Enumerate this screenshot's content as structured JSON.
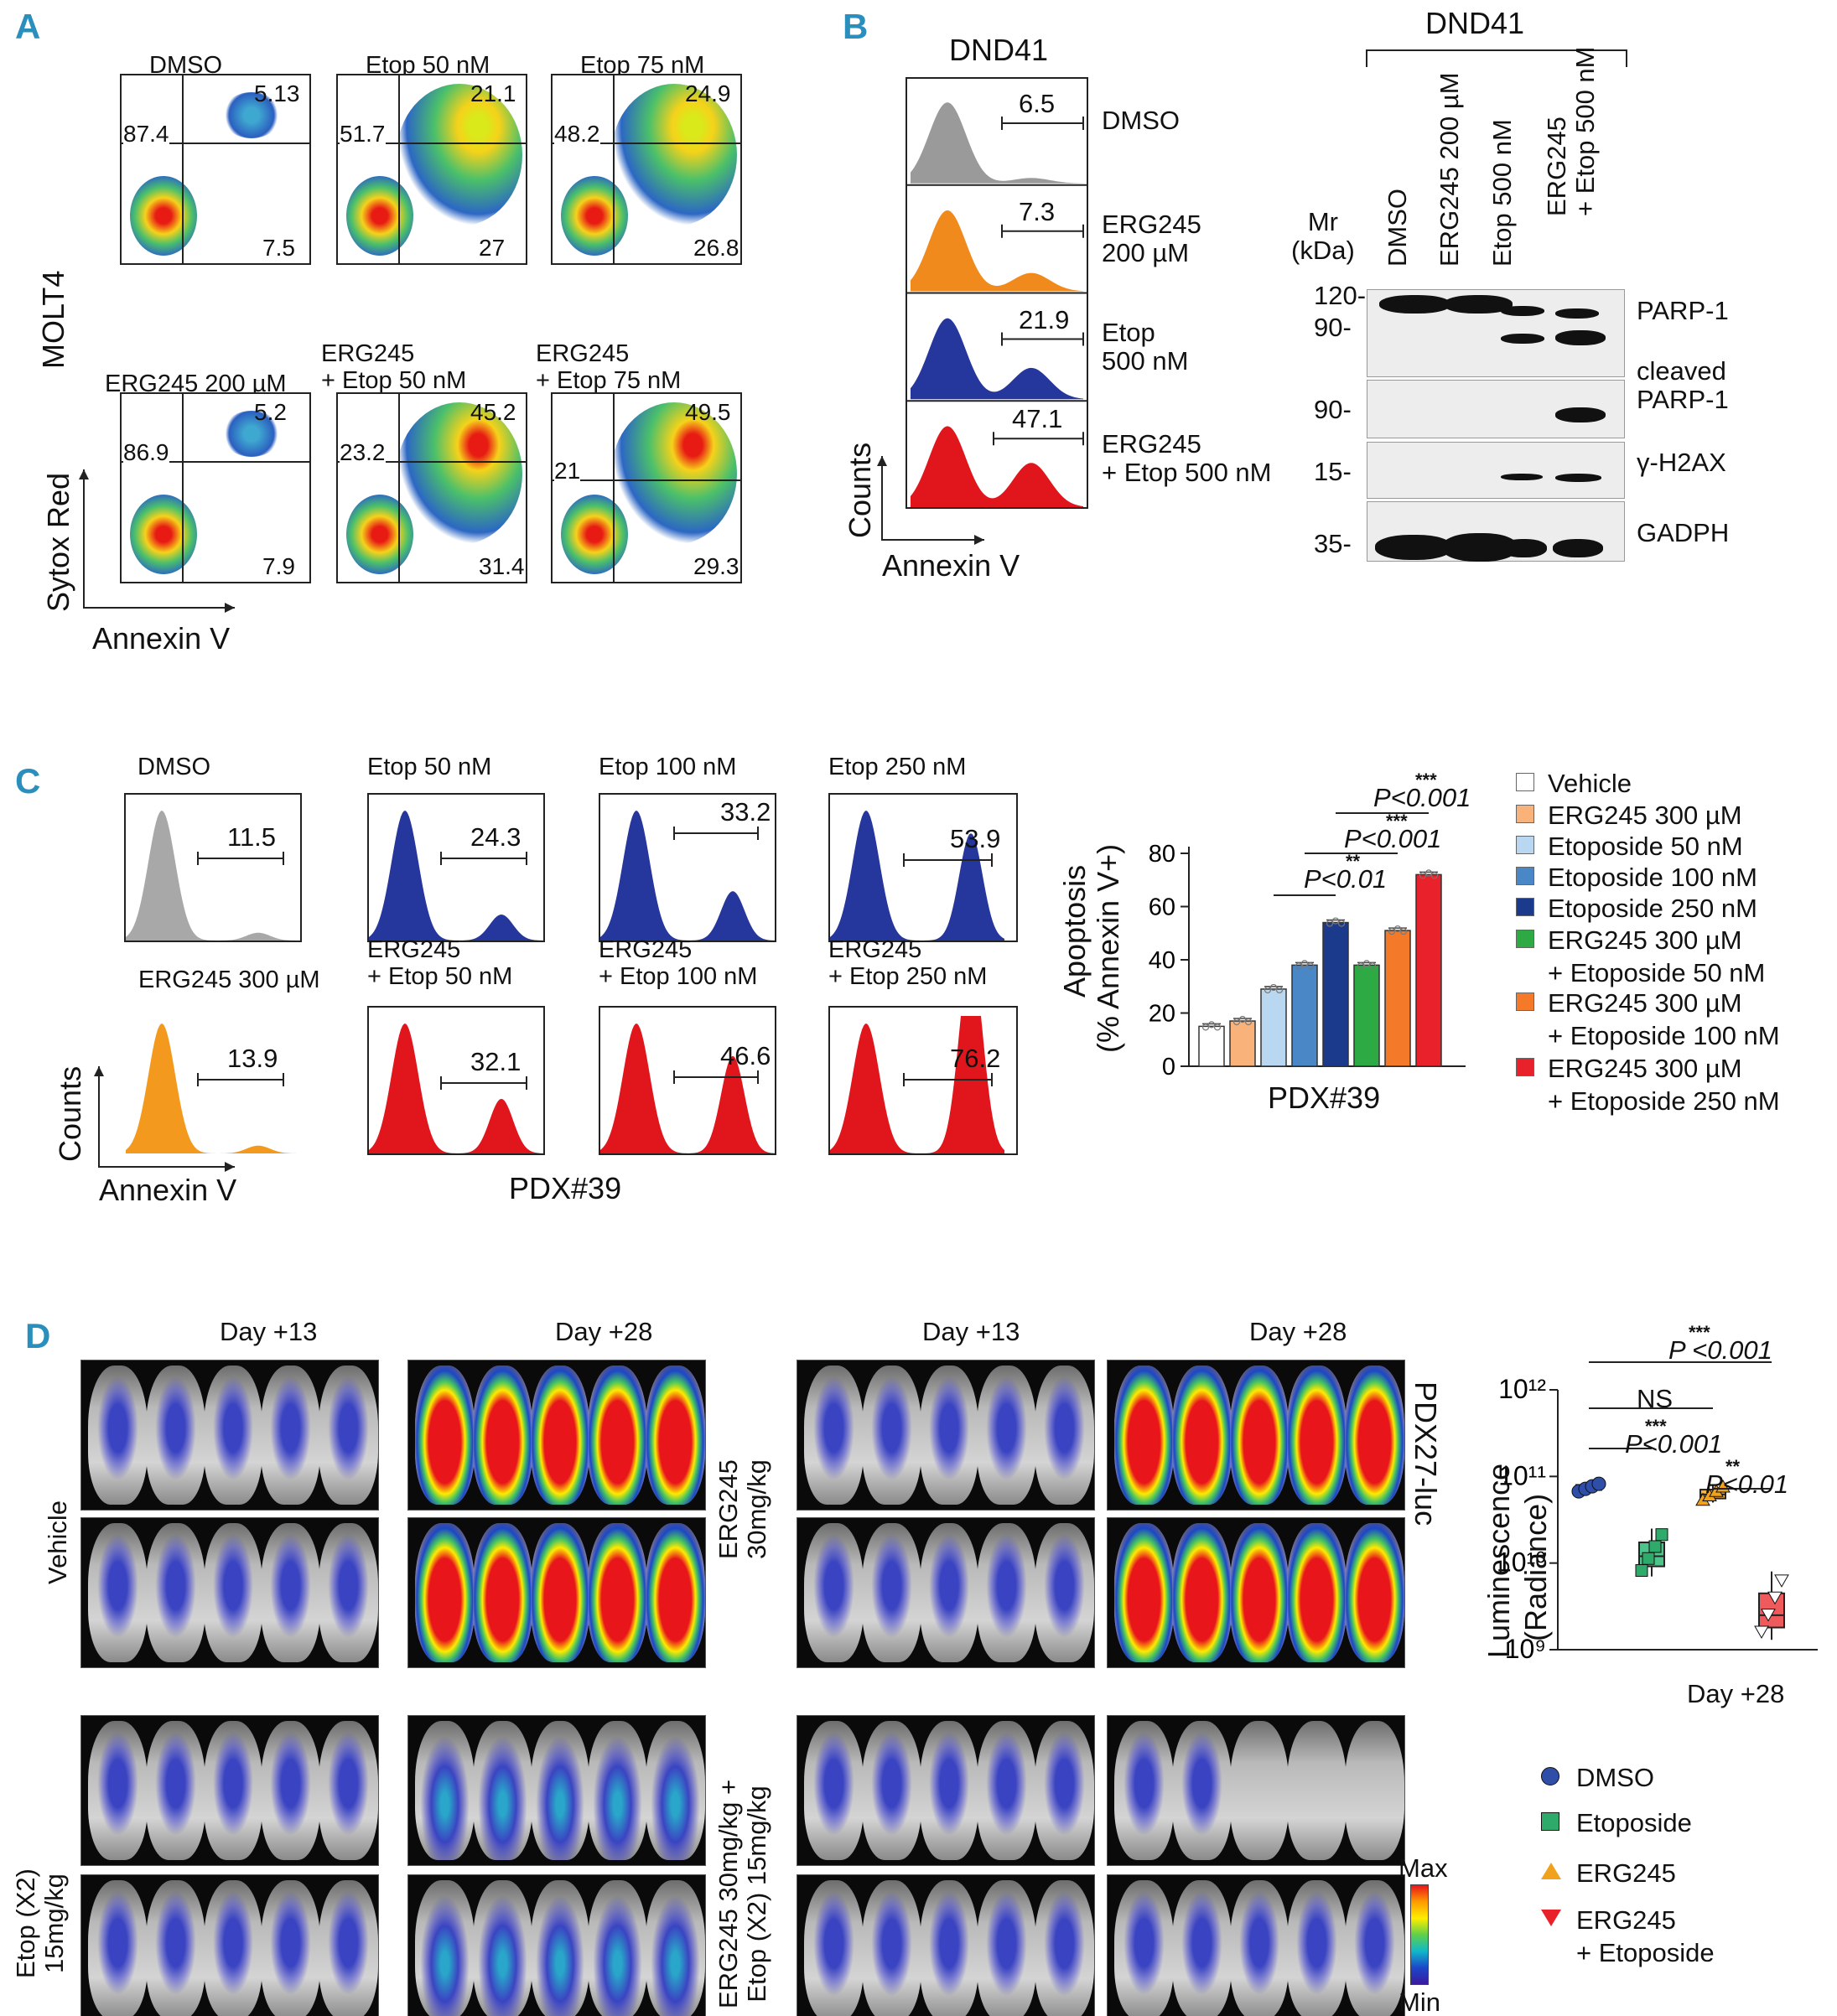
{
  "panelA": {
    "letter": "A",
    "row_label": "MOLT4",
    "y_axis": "Sytox Red",
    "x_axis": "Annexin V",
    "plots": [
      {
        "title": "DMSO",
        "ur": "5.13",
        "ul": "87.4",
        "lr": "7.5"
      },
      {
        "title": "Etop 50 nM",
        "ur": "21.1",
        "ul": "51.7",
        "lr": "27"
      },
      {
        "title": "Etop 75 nM",
        "ur": "24.9",
        "ul": "48.2",
        "lr": "26.8"
      },
      {
        "title": "ERG245 200 µM",
        "ur": "5.2",
        "ul": "86.9",
        "lr": "7.9"
      },
      {
        "title": "ERG245\n+ Etop 50 nM",
        "ur": "45.2",
        "ul": "23.2",
        "lr": "31.4"
      },
      {
        "title": "ERG245\n+ Etop 75 nM",
        "ur": "49.5",
        "ul": "21",
        "lr": "29.3"
      }
    ]
  },
  "panelB": {
    "letter": "B",
    "hist_title": "DND41",
    "y_axis": "Counts",
    "x_axis": "Annexin V",
    "hists": [
      {
        "value": "6.5",
        "label": "DMSO",
        "color": "#9a9a9a"
      },
      {
        "value": "7.3",
        "label": "ERG245\n200 µM",
        "color": "#f08a1c"
      },
      {
        "value": "21.9",
        "label": "Etop\n500 nM",
        "color": "#25369c"
      },
      {
        "value": "47.1",
        "label": "ERG245\n+ Etop 500 nM",
        "color": "#e0161c"
      }
    ],
    "blot_title": "DND41",
    "mr_label": "Mr\n(kDa)",
    "lanes": [
      "DMSO",
      "ERG245 200 µM",
      "Etop 500 nM",
      "ERG245\n+ Etop 500 nM"
    ],
    "markers": [
      "120-",
      "90-",
      "90-",
      "15-",
      "35-"
    ],
    "proteins": [
      "PARP-1",
      "cleaved\nPARP-1",
      "γ-H2AX",
      "GADPH"
    ]
  },
  "panelC": {
    "letter": "C",
    "hists_top": [
      {
        "title": "DMSO",
        "value": "11.5",
        "color": "#a8a8a8"
      },
      {
        "title": "Etop 50 nM",
        "value": "24.3",
        "color": "#25369c"
      },
      {
        "title": "Etop 100 nM",
        "value": "33.2",
        "color": "#25369c"
      },
      {
        "title": "Etop 250 nM",
        "value": "53.9",
        "color": "#25369c"
      }
    ],
    "hists_bottom": [
      {
        "title": "ERG245 300 µM",
        "value": "13.9",
        "color": "#f39a1e"
      },
      {
        "title": "ERG245\n+ Etop 50 nM",
        "value": "32.1",
        "color": "#e0161c"
      },
      {
        "title": "ERG245\n+ Etop 100 nM",
        "value": "46.6",
        "color": "#e0161c"
      },
      {
        "title": "ERG245\n+ Etop 250 nM",
        "value": "76.2",
        "color": "#e0161c"
      }
    ],
    "y_axis": "Counts",
    "x_axis": "Annexin V",
    "bottom_label": "PDX#39",
    "bar_title_top": "Apoptosis",
    "bar_title_bottom": "(% Annexin V+)",
    "bar_xlabel": "PDX#39",
    "sig": [
      {
        "stars": "***",
        "text": "P<0.001"
      },
      {
        "stars": "***",
        "text": "P<0.001"
      },
      {
        "stars": "**",
        "text": "P<0.01"
      }
    ],
    "legend": [
      {
        "label": "Vehicle",
        "color": "#ffffff"
      },
      {
        "label": "ERG245 300 µM",
        "color": "#f9b27a"
      },
      {
        "label": "Etoposide 50 nM",
        "color": "#b9d7f0"
      },
      {
        "label": "Etoposide 100 nM",
        "color": "#4a87c7"
      },
      {
        "label": "Etoposide 250 nM",
        "color": "#1b3a8c"
      },
      {
        "label": "ERG245 300 µM\n+ Etoposide 50 nM",
        "color": "#2eaa45"
      },
      {
        "label": "ERG245 300 µM\n+ Etoposide 100 nM",
        "color": "#f47a2a"
      },
      {
        "label": "ERG245 300 µM\n+ Etoposide 250 nM",
        "color": "#e8212a"
      }
    ]
  },
  "chart_data": [
    {
      "type": "bar",
      "title": "",
      "xlabel": "PDX#39",
      "ylabel": "Apoptosis (% Annexin V+)",
      "ylim": [
        0,
        80
      ],
      "yticks": [
        0,
        20,
        40,
        60,
        80
      ],
      "categories": [
        "Vehicle",
        "ERG245 300 µM",
        "Etoposide 50 nM",
        "Etoposide 100 nM",
        "Etoposide 250 nM",
        "ERG245 300 µM + Etoposide 50 nM",
        "ERG245 300 µM + Etoposide 100 nM",
        "ERG245 300 µM + Etoposide 250 nM"
      ],
      "values": [
        15,
        17,
        29,
        38,
        54,
        38,
        51,
        72
      ],
      "colors": [
        "#ffffff",
        "#f9b27a",
        "#b9d7f0",
        "#4a87c7",
        "#1b3a8c",
        "#2eaa45",
        "#f47a2a",
        "#e8212a"
      ]
    },
    {
      "type": "box",
      "title": "",
      "xlabel": "Day +28",
      "ylabel": "Luminescence (Radiance)",
      "yscale": "log",
      "ylim": [
        1000000000,
        1000000000000
      ],
      "ytick_labels": [
        "10⁹",
        "10¹⁰",
        "10¹¹",
        "10¹²"
      ],
      "series": [
        {
          "name": "DMSO",
          "median": 75000000000,
          "low": 65000000000,
          "high": 85000000000
        },
        {
          "name": "Etoposide",
          "median": 12000000000,
          "low": 7000000000,
          "high": 25000000000
        },
        {
          "name": "ERG245",
          "median": 62000000000,
          "low": 50000000000,
          "high": 80000000000
        },
        {
          "name": "ERG245\n+ Etoposide",
          "median": 2500000000,
          "low": 1300000000,
          "high": 8000000000
        }
      ]
    }
  ],
  "panelD": {
    "letter": "D",
    "day13": "Day +13",
    "day28": "Day +28",
    "groups": [
      "Vehicle",
      "Etop (X2)\n15mg/kg",
      "ERG245\n30mg/kg",
      "ERG245 30mg/kg +\nEtop (X2) 15mg/kg"
    ],
    "model": "PDX27-luc",
    "scale_max": "Max",
    "scale_min": "Min",
    "lum_ylabel_1": "Luminescence",
    "lum_ylabel_2": "(Radiance)",
    "lum_xlabel": "Day +28",
    "sig": [
      {
        "stars": "***",
        "text": "P <0.001"
      },
      {
        "stars": "",
        "text": "NS"
      },
      {
        "stars": "***",
        "text": "P<0.001"
      },
      {
        "stars": "**",
        "text": "P<0.01"
      }
    ],
    "legend": [
      {
        "label": "DMSO",
        "color": "#2e4ea8"
      },
      {
        "label": "Etoposide",
        "color": "#2eaa6a"
      },
      {
        "label": "ERG245",
        "color": "#f0a21c"
      },
      {
        "label": "ERG245\n+ Etoposide",
        "color": "#e8212a"
      }
    ]
  }
}
